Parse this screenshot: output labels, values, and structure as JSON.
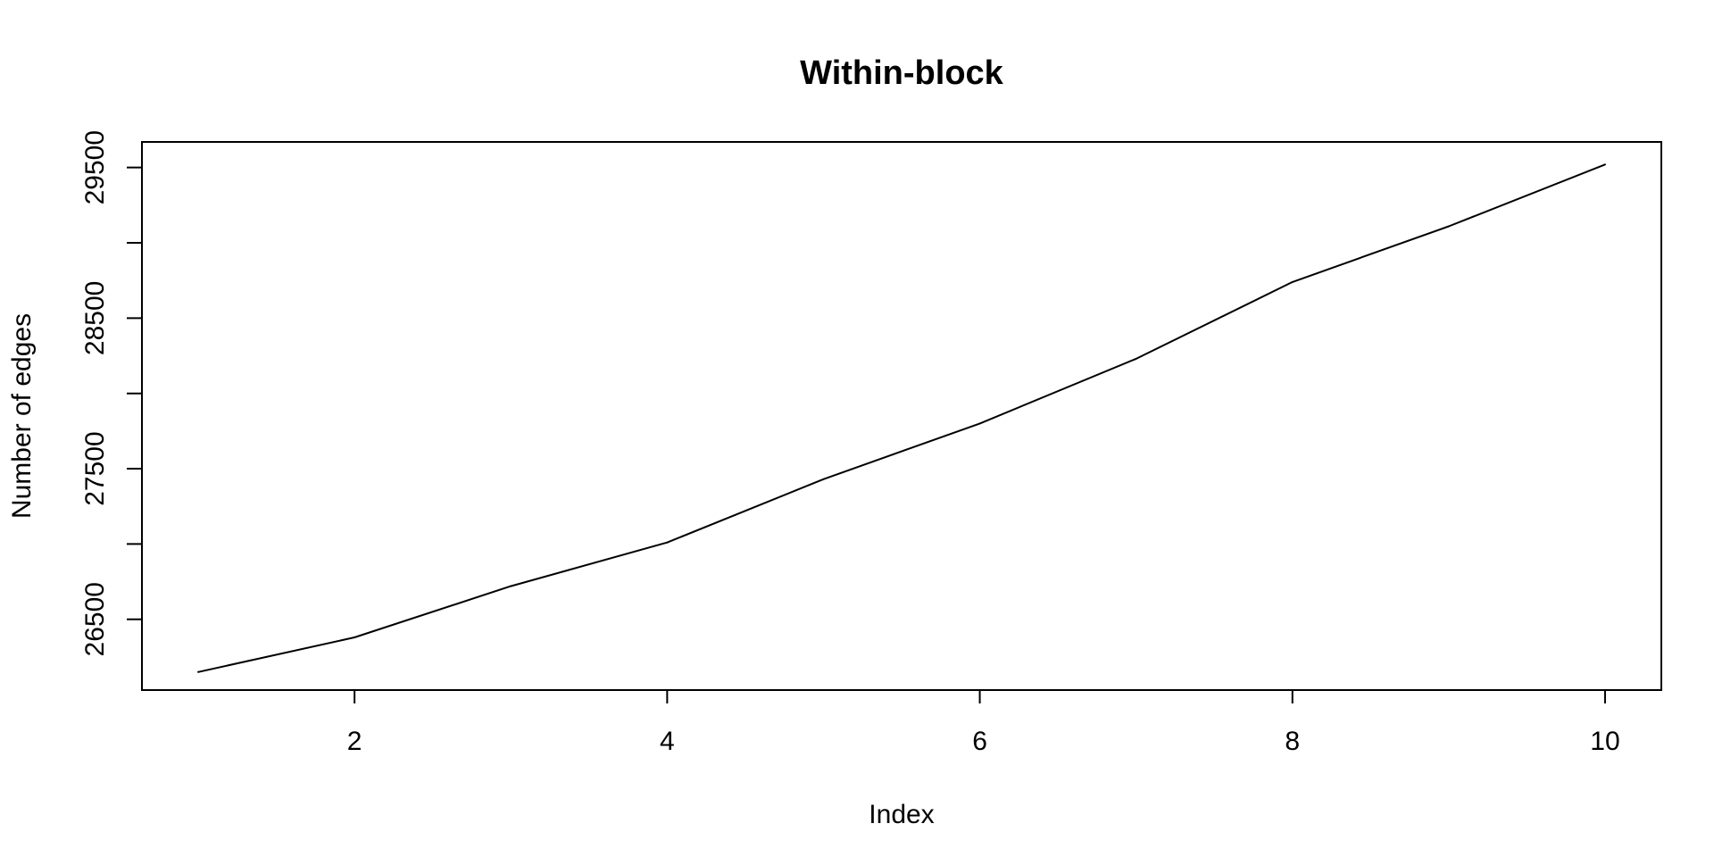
{
  "chart_data": {
    "type": "line",
    "title": "Within-block",
    "xlabel": "Index",
    "ylabel": "Number of edges",
    "x": [
      1,
      2,
      3,
      4,
      5,
      6,
      7,
      8,
      9,
      10
    ],
    "series": [
      {
        "values": [
          26150,
          26380,
          26720,
          27010,
          27430,
          27800,
          28230,
          28740,
          29110,
          29520
        ]
      }
    ],
    "xlim": [
      0.64,
      10.36
    ],
    "ylim": [
      26030,
      29670
    ],
    "x_ticks": [
      2,
      4,
      6,
      8,
      10
    ],
    "x_tick_labels": [
      "2",
      "4",
      "6",
      "8",
      "10"
    ],
    "y_ticks": [
      26500,
      27000,
      27500,
      28000,
      28500,
      29000,
      29500
    ],
    "y_tick_labels": [
      "26500",
      "",
      "27500",
      "",
      "28500",
      "",
      "29500"
    ],
    "grid": false,
    "legend": "none",
    "line_color": "#000000"
  }
}
